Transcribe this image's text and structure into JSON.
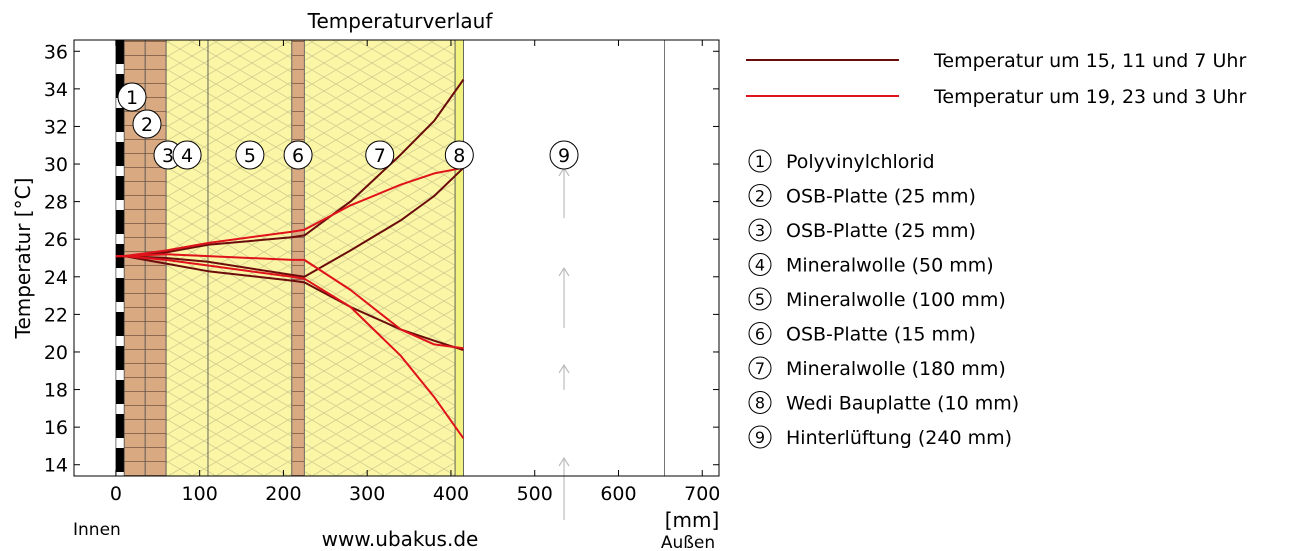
{
  "chart_data": {
    "type": "line",
    "title": "Temperaturverlauf",
    "ylabel": "Temperatur [°C]",
    "xunit": "[mm]",
    "xlabel_left": "Innen",
    "xlabel_right": "Außen",
    "source": "www.ubakus.de",
    "xlim": [
      -50,
      720
    ],
    "ylim": [
      13.4,
      36.6
    ],
    "xticks": [
      0,
      100,
      200,
      300,
      400,
      500,
      600,
      700
    ],
    "yticks": [
      14,
      16,
      18,
      20,
      22,
      24,
      26,
      28,
      30,
      32,
      34,
      36
    ],
    "grid": false,
    "legend_position": "right",
    "layers": [
      {
        "n": "1",
        "name": "Polyvinylchlorid",
        "x0": 0,
        "x1": 10,
        "fill": "stripes",
        "color": "#000000"
      },
      {
        "n": "2",
        "name": "OSB-Platte (25 mm)",
        "x0": 10,
        "x1": 35,
        "fill": "wood",
        "color": "#d9a982"
      },
      {
        "n": "3",
        "name": "OSB-Platte (25 mm)",
        "x0": 35,
        "x1": 60,
        "fill": "wood",
        "color": "#d9a982"
      },
      {
        "n": "4",
        "name": "Mineralwolle (50 mm)",
        "x0": 60,
        "x1": 110,
        "fill": "wool",
        "color": "#fbf6a6"
      },
      {
        "n": "5",
        "name": "Mineralwolle (100 mm)",
        "x0": 110,
        "x1": 210,
        "fill": "wool",
        "color": "#fbf6a6"
      },
      {
        "n": "6",
        "name": "OSB-Platte (15 mm)",
        "x0": 210,
        "x1": 225,
        "fill": "wood",
        "color": "#d9a982"
      },
      {
        "n": "7",
        "name": "Mineralwolle (180 mm)",
        "x0": 225,
        "x1": 405,
        "fill": "wool",
        "color": "#fbf6a6"
      },
      {
        "n": "8",
        "name": "Wedi Bauplatte (10 mm)",
        "x0": 405,
        "x1": 415,
        "fill": "plain",
        "color": "#f2f280"
      },
      {
        "n": "9",
        "name": "Hinterlüftung (240 mm)",
        "x0": 415,
        "x1": 655,
        "fill": "air",
        "color": "#ffffff"
      }
    ],
    "series": [
      {
        "name": "Temperatur um 15, 11 und 7 Uhr",
        "color": "#6b0c0c",
        "lines": [
          {
            "x": [
              0,
              10,
              60,
              110,
              210,
              225,
              280,
              340,
              380,
              415
            ],
            "y": [
              25.1,
              25.1,
              25.3,
              25.7,
              26.1,
              26.2,
              28.0,
              30.5,
              32.3,
              34.5
            ]
          },
          {
            "x": [
              0,
              10,
              60,
              110,
              210,
              225,
              280,
              340,
              380,
              415
            ],
            "y": [
              25.1,
              25.1,
              25.0,
              24.8,
              24.1,
              24.0,
              25.4,
              27.0,
              28.3,
              29.8
            ]
          },
          {
            "x": [
              0,
              10,
              60,
              110,
              210,
              225,
              280,
              340,
              380,
              415
            ],
            "y": [
              25.1,
              25.1,
              24.7,
              24.3,
              23.8,
              23.7,
              22.4,
              21.2,
              20.6,
              20.1
            ]
          }
        ]
      },
      {
        "name": "Temperatur um 19, 23 und 3 Uhr",
        "color": "#e0121b",
        "lines": [
          {
            "x": [
              0,
              10,
              60,
              110,
              210,
              225,
              280,
              340,
              380,
              415
            ],
            "y": [
              25.1,
              25.1,
              25.4,
              25.8,
              26.4,
              26.5,
              27.8,
              28.9,
              29.5,
              29.8
            ]
          },
          {
            "x": [
              0,
              10,
              60,
              110,
              210,
              225,
              280,
              340,
              380,
              415
            ],
            "y": [
              25.1,
              25.1,
              25.2,
              25.1,
              24.9,
              24.9,
              23.3,
              21.2,
              20.4,
              20.2
            ]
          },
          {
            "x": [
              0,
              10,
              60,
              110,
              210,
              225,
              280,
              340,
              380,
              415
            ],
            "y": [
              25.1,
              25.1,
              24.9,
              24.6,
              24.0,
              23.9,
              22.4,
              19.8,
              17.6,
              15.4
            ]
          }
        ]
      }
    ]
  }
}
